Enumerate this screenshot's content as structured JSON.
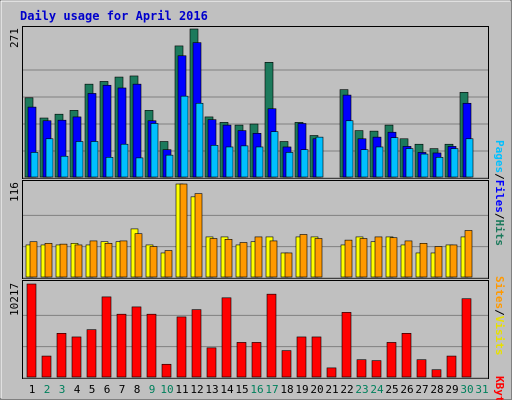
{
  "title": "Daily usage for April 2016",
  "colors": {
    "background": "#c0c0c0",
    "title": "#0000cc",
    "hits": "#1c7a5c",
    "files": "#0000ff",
    "pages": "#00c0ff",
    "visits": "#ffff00",
    "sites": "#ff9900",
    "kbytes": "#ff0000",
    "weekend_day": "#00805c",
    "weekday": "#000000"
  },
  "chart_data": [
    {
      "type": "bar",
      "panel": "hits",
      "ymax_label": "271",
      "legend": [
        "Pages",
        "Files",
        "Hits"
      ],
      "categories": [
        "1",
        "2",
        "3",
        "4",
        "5",
        "6",
        "7",
        "8",
        "9",
        "10",
        "11",
        "12",
        "13",
        "14",
        "15",
        "16",
        "17",
        "18",
        "19",
        "20",
        "21",
        "22",
        "23",
        "24",
        "25",
        "26",
        "27",
        "28",
        "29",
        "30",
        "31"
      ],
      "weekend_days": [
        "2",
        "3",
        "9",
        "10",
        "16",
        "17",
        "23",
        "24",
        "30",
        "31"
      ],
      "series": [
        {
          "name": "Hits",
          "values": [
            145,
            108,
            115,
            122,
            170,
            175,
            183,
            185,
            122,
            65,
            240,
            271,
            110,
            100,
            95,
            97,
            210,
            65,
            100,
            76,
            0,
            160,
            85,
            84,
            95,
            70,
            60,
            52,
            60,
            155,
            0
          ]
        },
        {
          "name": "Files",
          "values": [
            128,
            103,
            104,
            110,
            153,
            168,
            163,
            170,
            103,
            50,
            222,
            246,
            105,
            95,
            85,
            80,
            125,
            55,
            98,
            70,
            0,
            150,
            70,
            73,
            82,
            56,
            45,
            44,
            56,
            135,
            0
          ]
        },
        {
          "name": "Pages",
          "values": [
            45,
            70,
            38,
            65,
            65,
            36,
            60,
            35,
            98,
            40,
            148,
            135,
            58,
            55,
            57,
            55,
            83,
            45,
            50,
            73,
            0,
            103,
            50,
            55,
            72,
            52,
            42,
            36,
            52,
            70,
            0
          ]
        }
      ]
    },
    {
      "type": "bar",
      "panel": "visits",
      "ymax_label": "116",
      "legend": [
        "Sites",
        "Visits"
      ],
      "categories": [
        "1",
        "2",
        "3",
        "4",
        "5",
        "6",
        "7",
        "8",
        "9",
        "10",
        "11",
        "12",
        "13",
        "14",
        "15",
        "16",
        "17",
        "18",
        "19",
        "20",
        "21",
        "22",
        "23",
        "24",
        "25",
        "26",
        "27",
        "28",
        "29",
        "30",
        "31"
      ],
      "series": [
        {
          "name": "Visits",
          "values": [
            40,
            40,
            40,
            42,
            40,
            44,
            44,
            60,
            40,
            30,
            116,
            100,
            50,
            50,
            40,
            44,
            50,
            30,
            50,
            50,
            0,
            40,
            50,
            44,
            50,
            40,
            30,
            30,
            40,
            50,
            0
          ]
        },
        {
          "name": "Sites",
          "values": [
            44,
            42,
            41,
            40,
            45,
            42,
            45,
            54,
            38,
            33,
            116,
            104,
            48,
            47,
            43,
            50,
            45,
            30,
            53,
            48,
            0,
            46,
            48,
            50,
            49,
            45,
            42,
            38,
            40,
            58,
            0
          ]
        }
      ]
    },
    {
      "type": "bar",
      "panel": "kbytes",
      "ymax_label": "10217",
      "legend": [
        "KBytes"
      ],
      "categories": [
        "1",
        "2",
        "3",
        "4",
        "5",
        "6",
        "7",
        "8",
        "9",
        "10",
        "11",
        "12",
        "13",
        "14",
        "15",
        "16",
        "17",
        "18",
        "19",
        "20",
        "21",
        "22",
        "23",
        "24",
        "25",
        "26",
        "27",
        "28",
        "29",
        "30",
        "31"
      ],
      "series": [
        {
          "name": "KBytes",
          "values": [
            10217,
            2300,
            4800,
            4400,
            5200,
            8800,
            6900,
            7700,
            6900,
            1400,
            6600,
            7400,
            3200,
            8700,
            3800,
            3800,
            9100,
            2900,
            4400,
            4400,
            1000,
            7100,
            1900,
            1800,
            3800,
            4800,
            1900,
            800,
            2300,
            8600,
            0
          ]
        }
      ]
    }
  ]
}
